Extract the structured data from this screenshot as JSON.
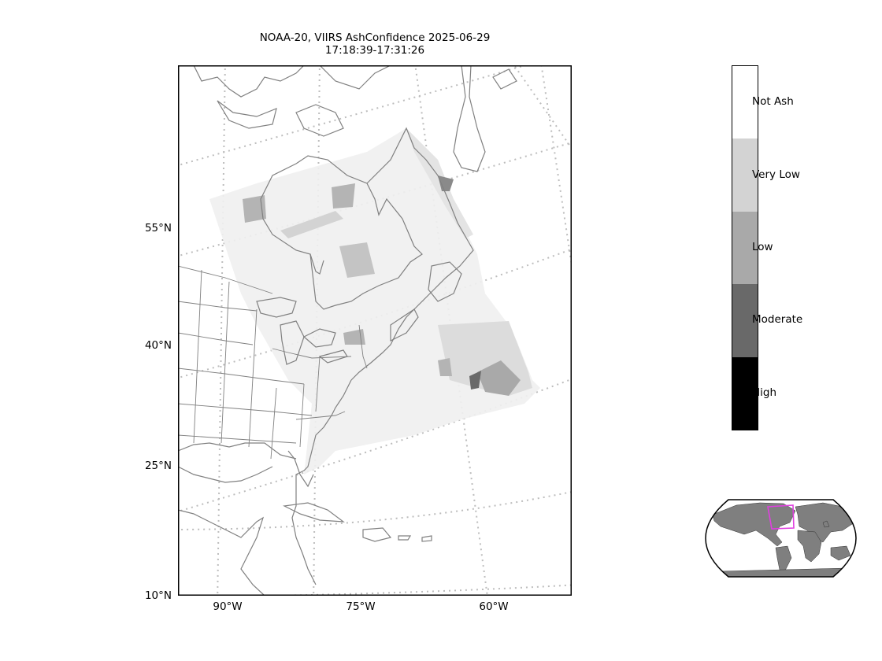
{
  "title": {
    "line1": "NOAA-20, VIIRS AshConfidence 2025-06-29",
    "line2": "17:18:39-17:31:26"
  },
  "axes": {
    "lat_ticks": [
      "55°N",
      "40°N",
      "25°N",
      "10°N"
    ],
    "lon_ticks": [
      "90°W",
      "75°W",
      "60°W"
    ]
  },
  "legend": {
    "categories": [
      {
        "label": "Not Ash",
        "color": "#ffffff"
      },
      {
        "label": "Very Low",
        "color": "#d3d3d3"
      },
      {
        "label": "Low",
        "color": "#a9a9a9"
      },
      {
        "label": "Moderate",
        "color": "#696969"
      },
      {
        "label": "High",
        "color": "#000000"
      }
    ]
  },
  "colors": {
    "coastline": "#808080",
    "graticule": "#bdbdbd",
    "inset_land": "#7f7f7f",
    "inset_box": "#e040e0"
  }
}
